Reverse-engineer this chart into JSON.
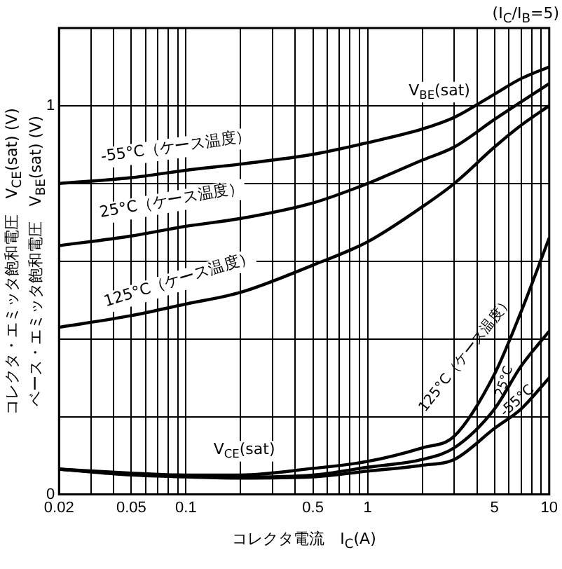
{
  "chart_data": {
    "type": "line",
    "xlabel": "コレクタ電流　I$_{C}$(A)",
    "ylabel": "コレクタ・エミッタ飽和電圧　V$_{CE}$(sat) (V)\nベース・エミッタ飽和電圧　V$_{BE}$(sat) (V)",
    "x": [
      0.02,
      0.05,
      0.1,
      0.2,
      0.5,
      1,
      2,
      3,
      5,
      7,
      10
    ],
    "series": [
      {
        "color": "#000000",
        "values": [
          0.8,
          0.815,
          0.834,
          0.85,
          0.875,
          0.905,
          0.94,
          0.97,
          1.03,
          1.07,
          1.1
        ]
      },
      {
        "color": "#000000",
        "values": [
          0.64,
          0.665,
          0.69,
          0.71,
          0.75,
          0.8,
          0.86,
          0.894,
          0.965,
          1.01,
          1.057
        ]
      },
      {
        "color": "#000000",
        "values": [
          0.43,
          0.46,
          0.49,
          0.52,
          0.59,
          0.65,
          0.74,
          0.8,
          0.894,
          0.95,
          1.0
        ]
      },
      {
        "color": "#000000",
        "values": [
          0.065,
          0.055,
          0.05,
          0.05,
          0.067,
          0.085,
          0.12,
          0.15,
          0.31,
          0.47,
          0.66
        ]
      },
      {
        "color": "#000000",
        "values": [
          0.065,
          0.052,
          0.047,
          0.045,
          0.05,
          0.07,
          0.09,
          0.12,
          0.22,
          0.33,
          0.42
        ]
      },
      {
        "color": "#000000",
        "values": [
          0.065,
          0.05,
          0.045,
          0.042,
          0.045,
          0.06,
          0.075,
          0.09,
          0.17,
          0.22,
          0.3
        ]
      }
    ],
    "log": "x",
    "xlim": [
      0.02,
      10
    ],
    "ylim": [
      0,
      1.2
    ],
    "xticks": [
      0.02,
      {
        "value": 0.03,
        "label": null
      },
      {
        "value": 0.04,
        "label": null
      },
      0.05,
      {
        "value": 0.06,
        "label": null
      },
      {
        "value": 0.07,
        "label": null
      },
      {
        "value": 0.08,
        "label": null
      },
      {
        "value": 0.09,
        "label": null
      },
      0.1,
      {
        "value": 0.2,
        "label": null
      },
      {
        "value": 0.3,
        "label": null
      },
      {
        "value": 0.4,
        "label": null
      },
      0.5,
      {
        "value": 0.6,
        "label": null
      },
      {
        "value": 0.7,
        "label": null
      },
      {
        "value": 0.8,
        "label": null
      },
      {
        "value": 0.9,
        "label": null
      },
      1,
      {
        "value": 2,
        "label": null
      },
      {
        "value": 3,
        "label": null
      },
      {
        "value": 4,
        "label": null
      },
      5,
      {
        "value": 6,
        "label": null
      },
      {
        "value": 7,
        "label": null
      },
      {
        "value": 8,
        "label": null
      },
      {
        "value": 9,
        "label": null
      },
      10
    ],
    "yticks": [
      0,
      {
        "value": 0.2,
        "label": null
      },
      {
        "value": 0.4,
        "label": null
      },
      {
        "value": 0.6,
        "label": null
      },
      {
        "value": 0.8,
        "label": null
      },
      1
    ],
    "grid": true,
    "marker": "none",
    "line_style": "solid",
    "annotations": [
      "(I$_{C}$/I$_{B}$=5)",
      "V$_{BE}$(sat)",
      "-55°C（ケース温度）",
      "25°C（ケース温度）",
      "125°C（ケース温度）",
      "V$_{CE}$(sat)",
      "125°C（ケース温度）",
      "25°C",
      "-55°C"
    ]
  }
}
